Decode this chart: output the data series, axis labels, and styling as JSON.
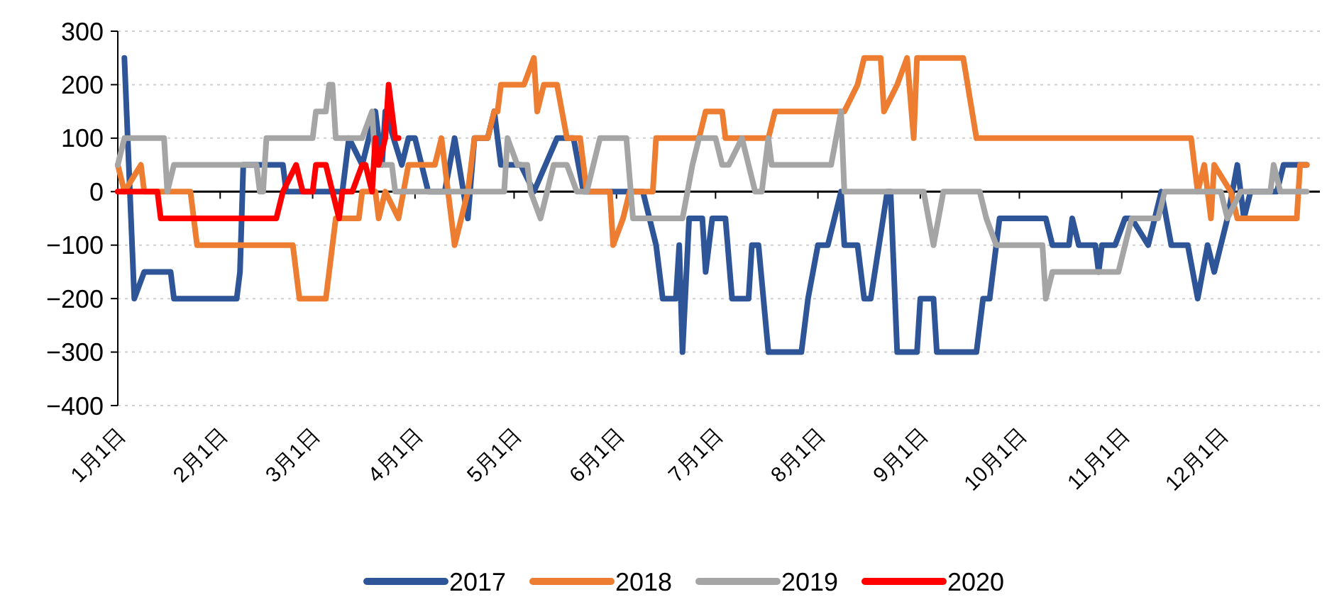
{
  "chart_data": {
    "type": "line",
    "xlim": [
      "--01-01",
      "--12-31"
    ],
    "xticks": [
      {
        "value": "--01-01",
        "label": "1月1日"
      },
      {
        "value": "--02-01",
        "label": "2月1日"
      },
      {
        "value": "--03-01",
        "label": "3月1日"
      },
      {
        "value": "--04-01",
        "label": "4月1日"
      },
      {
        "value": "--05-01",
        "label": "5月1日"
      },
      {
        "value": "--06-01",
        "label": "6月1日"
      },
      {
        "value": "--07-01",
        "label": "7月1日"
      },
      {
        "value": "--08-01",
        "label": "8月1日"
      },
      {
        "value": "--09-01",
        "label": "9月1日"
      },
      {
        "value": "--10-01",
        "label": "10月1日"
      },
      {
        "value": "--11-01",
        "label": "11月1日"
      },
      {
        "value": "--12-01",
        "label": "12月1日"
      }
    ],
    "ylim": [
      -400,
      300
    ],
    "yticks": [
      -400,
      -300,
      -200,
      -100,
      0,
      100,
      200,
      300
    ],
    "grid": "y",
    "legend": "bottom",
    "marker": "none",
    "line_style": "solid",
    "series": [
      {
        "name": "2017",
        "color": "#2e5597",
        "x": [
          "--01-03",
          "--01-06",
          "--01-09",
          "--01-17",
          "--01-18",
          "--02-06",
          "--02-07",
          "--02-08",
          "--02-20",
          "--02-21",
          "--03-10",
          "--03-12",
          "--03-16",
          "--03-20",
          "--03-22",
          "--03-23",
          "--03-28",
          "--03-30",
          "--04-01",
          "--04-05",
          "--04-10",
          "--04-13",
          "--04-17",
          "--04-19",
          "--04-23",
          "--04-25",
          "--04-27",
          "--05-03",
          "--05-07",
          "--05-14",
          "--05-19",
          "--05-22",
          "--06-09",
          "--06-13",
          "--06-15",
          "--06-19",
          "--06-20",
          "--06-21",
          "--06-23",
          "--06-27",
          "--06-28",
          "--06-30",
          "--07-04",
          "--07-06",
          "--07-11",
          "--07-12",
          "--07-14",
          "--07-17",
          "--07-27",
          "--07-29",
          "--08-01",
          "--08-04",
          "--08-08",
          "--08-09",
          "--08-13",
          "--08-15",
          "--08-17",
          "--08-22",
          "--08-23",
          "--08-25",
          "--08-31",
          "--09-01",
          "--09-05",
          "--09-06",
          "--09-18",
          "--09-20",
          "--09-22",
          "--09-24",
          "--09-25",
          "--10-09",
          "--10-11",
          "--10-16",
          "--10-17",
          "--10-19",
          "--10-24",
          "--10-25",
          "--10-26",
          "--10-30",
          "--11-02",
          "--11-04",
          "--11-09",
          "--11-13",
          "--11-16",
          "--11-21",
          "--11-24",
          "--11-27",
          "--11-29",
          "--12-03",
          "--12-06",
          "--12-08",
          "--12-10",
          "--12-18",
          "--12-20",
          "--12-27"
        ],
        "values": [
          250,
          -200,
          -150,
          -150,
          -200,
          -200,
          -150,
          50,
          50,
          0,
          0,
          100,
          50,
          150,
          50,
          150,
          50,
          100,
          100,
          0,
          0,
          100,
          -50,
          100,
          100,
          150,
          50,
          50,
          0,
          100,
          100,
          0,
          0,
          -100,
          -200,
          -200,
          -100,
          -300,
          -50,
          -50,
          -150,
          -50,
          -50,
          -200,
          -200,
          -100,
          -100,
          -300,
          -300,
          -200,
          -100,
          -100,
          0,
          -100,
          -100,
          -200,
          -200,
          0,
          0,
          -300,
          -300,
          -200,
          -200,
          -300,
          -300,
          -200,
          -200,
          -100,
          -50,
          -50,
          -100,
          -100,
          -50,
          -100,
          -100,
          -150,
          -100,
          -100,
          -50,
          -50,
          -100,
          0,
          -100,
          -100,
          -200,
          -100,
          -150,
          -50,
          50,
          -50,
          0,
          0,
          50,
          50
        ]
      },
      {
        "name": "2018",
        "color": "#ed7d31",
        "x": [
          "--01-01",
          "--01-03",
          "--01-08",
          "--01-09",
          "--01-23",
          "--01-25",
          "--02-23",
          "--02-25",
          "--03-05",
          "--03-07",
          "--03-08",
          "--03-15",
          "--03-16",
          "--03-20",
          "--03-21",
          "--03-23",
          "--03-27",
          "--03-30",
          "--04-07",
          "--04-09",
          "--04-13",
          "--04-17",
          "--04-19",
          "--04-23",
          "--04-25",
          "--04-26",
          "--04-27",
          "--05-04",
          "--05-07",
          "--05-08",
          "--05-10",
          "--05-14",
          "--05-17",
          "--05-21",
          "--05-23",
          "--05-30",
          "--05-31",
          "--06-03",
          "--06-05",
          "--06-12",
          "--06-13",
          "--06-26",
          "--06-28",
          "--07-03",
          "--07-04",
          "--07-17",
          "--07-19",
          "--08-09",
          "--08-13",
          "--08-15",
          "--08-20",
          "--08-21",
          "--08-25",
          "--08-28",
          "--08-30",
          "--08-31",
          "--09-14",
          "--09-18",
          "--11-22",
          "--11-24",
          "--11-26",
          "--11-28",
          "--11-29",
          "--12-04",
          "--12-06",
          "--12-24",
          "--12-25",
          "--12-27"
        ],
        "values": [
          50,
          0,
          50,
          0,
          0,
          -100,
          -100,
          -200,
          -200,
          -100,
          -50,
          -50,
          0,
          0,
          -50,
          0,
          -50,
          50,
          50,
          100,
          -100,
          0,
          100,
          100,
          150,
          150,
          200,
          200,
          250,
          150,
          200,
          200,
          100,
          100,
          0,
          0,
          -100,
          -50,
          0,
          0,
          100,
          100,
          150,
          150,
          100,
          100,
          150,
          150,
          200,
          250,
          250,
          150,
          200,
          250,
          100,
          250,
          250,
          100,
          100,
          0,
          50,
          -50,
          50,
          0,
          -50,
          -50,
          50,
          50
        ]
      },
      {
        "name": "2019",
        "color": "#a5a5a5",
        "x": [
          "--01-01",
          "--01-03",
          "--01-15",
          "--01-16",
          "--01-18",
          "--02-12",
          "--02-13",
          "--02-14",
          "--02-15",
          "--03-01",
          "--03-02",
          "--03-05",
          "--03-06",
          "--03-07",
          "--03-08",
          "--03-16",
          "--03-19",
          "--03-20",
          "--03-25",
          "--03-26",
          "--04-28",
          "--04-29",
          "--05-02",
          "--05-05",
          "--05-06",
          "--05-09",
          "--05-13",
          "--05-17",
          "--05-20",
          "--05-23",
          "--05-27",
          "--06-04",
          "--06-06",
          "--06-21",
          "--06-24",
          "--06-26",
          "--07-01",
          "--07-03",
          "--07-05",
          "--07-09",
          "--07-13",
          "--07-15",
          "--07-17",
          "--07-18",
          "--08-05",
          "--08-08",
          "--08-09",
          "--09-02",
          "--09-05",
          "--09-08",
          "--09-19",
          "--09-21",
          "--09-24",
          "--10-08",
          "--10-09",
          "--10-11",
          "--10-31",
          "--11-04",
          "--11-12",
          "--11-14",
          "--12-01",
          "--12-03",
          "--12-07",
          "--12-16",
          "--12-17",
          "--12-19",
          "--12-27"
        ],
        "values": [
          50,
          100,
          100,
          0,
          50,
          50,
          0,
          0,
          100,
          100,
          150,
          150,
          200,
          200,
          100,
          100,
          150,
          50,
          50,
          0,
          0,
          100,
          50,
          50,
          0,
          -50,
          50,
          50,
          0,
          0,
          100,
          100,
          -50,
          -50,
          50,
          100,
          100,
          50,
          50,
          100,
          0,
          0,
          100,
          50,
          50,
          150,
          0,
          0,
          -100,
          0,
          0,
          -50,
          -100,
          -100,
          -200,
          -150,
          -150,
          -50,
          -50,
          0,
          0,
          -50,
          0,
          0,
          50,
          0,
          0
        ]
      },
      {
        "name": "2020",
        "color": "#ff0000",
        "x": [
          "--01-01",
          "--01-13",
          "--01-14",
          "--02-18",
          "--02-20",
          "--02-24",
          "--02-26",
          "--03-01",
          "--03-02",
          "--03-05",
          "--03-07",
          "--03-09",
          "--03-10",
          "--03-13",
          "--03-16",
          "--03-17",
          "--03-19",
          "--03-20",
          "--03-21",
          "--03-23",
          "--03-24",
          "--03-26",
          "--03-27"
        ],
        "values": [
          0,
          0,
          -50,
          -50,
          0,
          50,
          0,
          0,
          50,
          50,
          0,
          -50,
          0,
          0,
          50,
          50,
          0,
          100,
          50,
          100,
          200,
          100,
          100
        ]
      }
    ]
  }
}
